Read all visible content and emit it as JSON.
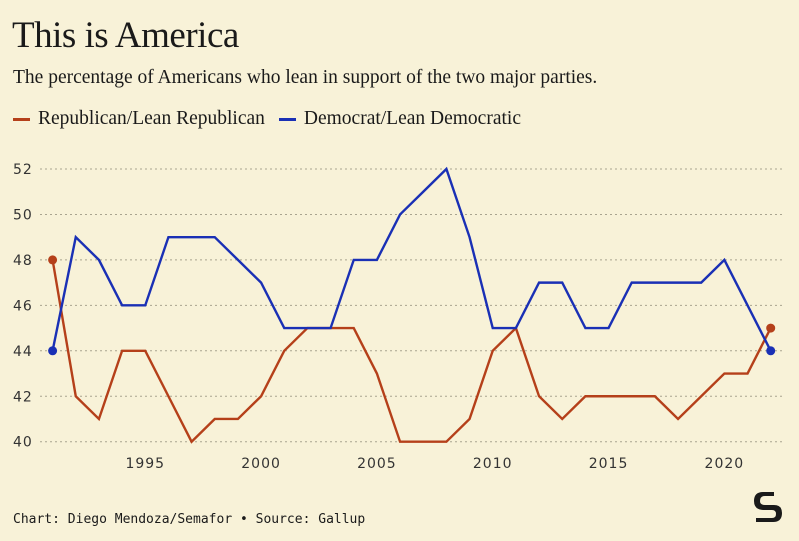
{
  "title": "This is America",
  "subtitle": "The percentage of Americans who lean in support of the two major parties.",
  "footer": "Chart: Diego Mendoza/Semafor • Source: Gallup",
  "logo_text": "S",
  "chart_data": {
    "type": "line",
    "title": "This is America",
    "subtitle": "The percentage of Americans who lean in support of the two major parties.",
    "xlabel": "",
    "ylabel": "",
    "xlim": [
      1991,
      2022
    ],
    "ylim": [
      40,
      52
    ],
    "x_ticks": [
      1995,
      2000,
      2005,
      2010,
      2015,
      2020
    ],
    "y_ticks": [
      40,
      42,
      44,
      46,
      48,
      50,
      52
    ],
    "grid": "horizontal dotted",
    "legend": "top-left",
    "x": [
      1991,
      1992,
      1993,
      1994,
      1995,
      1996,
      1997,
      1998,
      1999,
      2000,
      2001,
      2002,
      2003,
      2004,
      2005,
      2006,
      2007,
      2008,
      2009,
      2010,
      2011,
      2012,
      2013,
      2014,
      2015,
      2016,
      2017,
      2018,
      2019,
      2020,
      2021,
      2022
    ],
    "series": [
      {
        "name": "Republican/Lean Republican",
        "color": "#b5401a",
        "values": [
          48,
          42,
          41,
          44,
          44,
          42,
          40,
          41,
          41,
          42,
          44,
          45,
          45,
          45,
          43,
          40,
          40,
          40,
          41,
          44,
          45,
          42,
          41,
          42,
          42,
          42,
          42,
          41,
          42,
          43,
          43,
          45
        ]
      },
      {
        "name": "Democrat/Lean Democratic",
        "color": "#1a30b5",
        "values": [
          44,
          49,
          48,
          46,
          46,
          49,
          49,
          49,
          48,
          47,
          45,
          45,
          45,
          48,
          48,
          50,
          51,
          52,
          49,
          45,
          45,
          47,
          47,
          45,
          45,
          47,
          47,
          47,
          47,
          48,
          46,
          44
        ]
      }
    ]
  }
}
